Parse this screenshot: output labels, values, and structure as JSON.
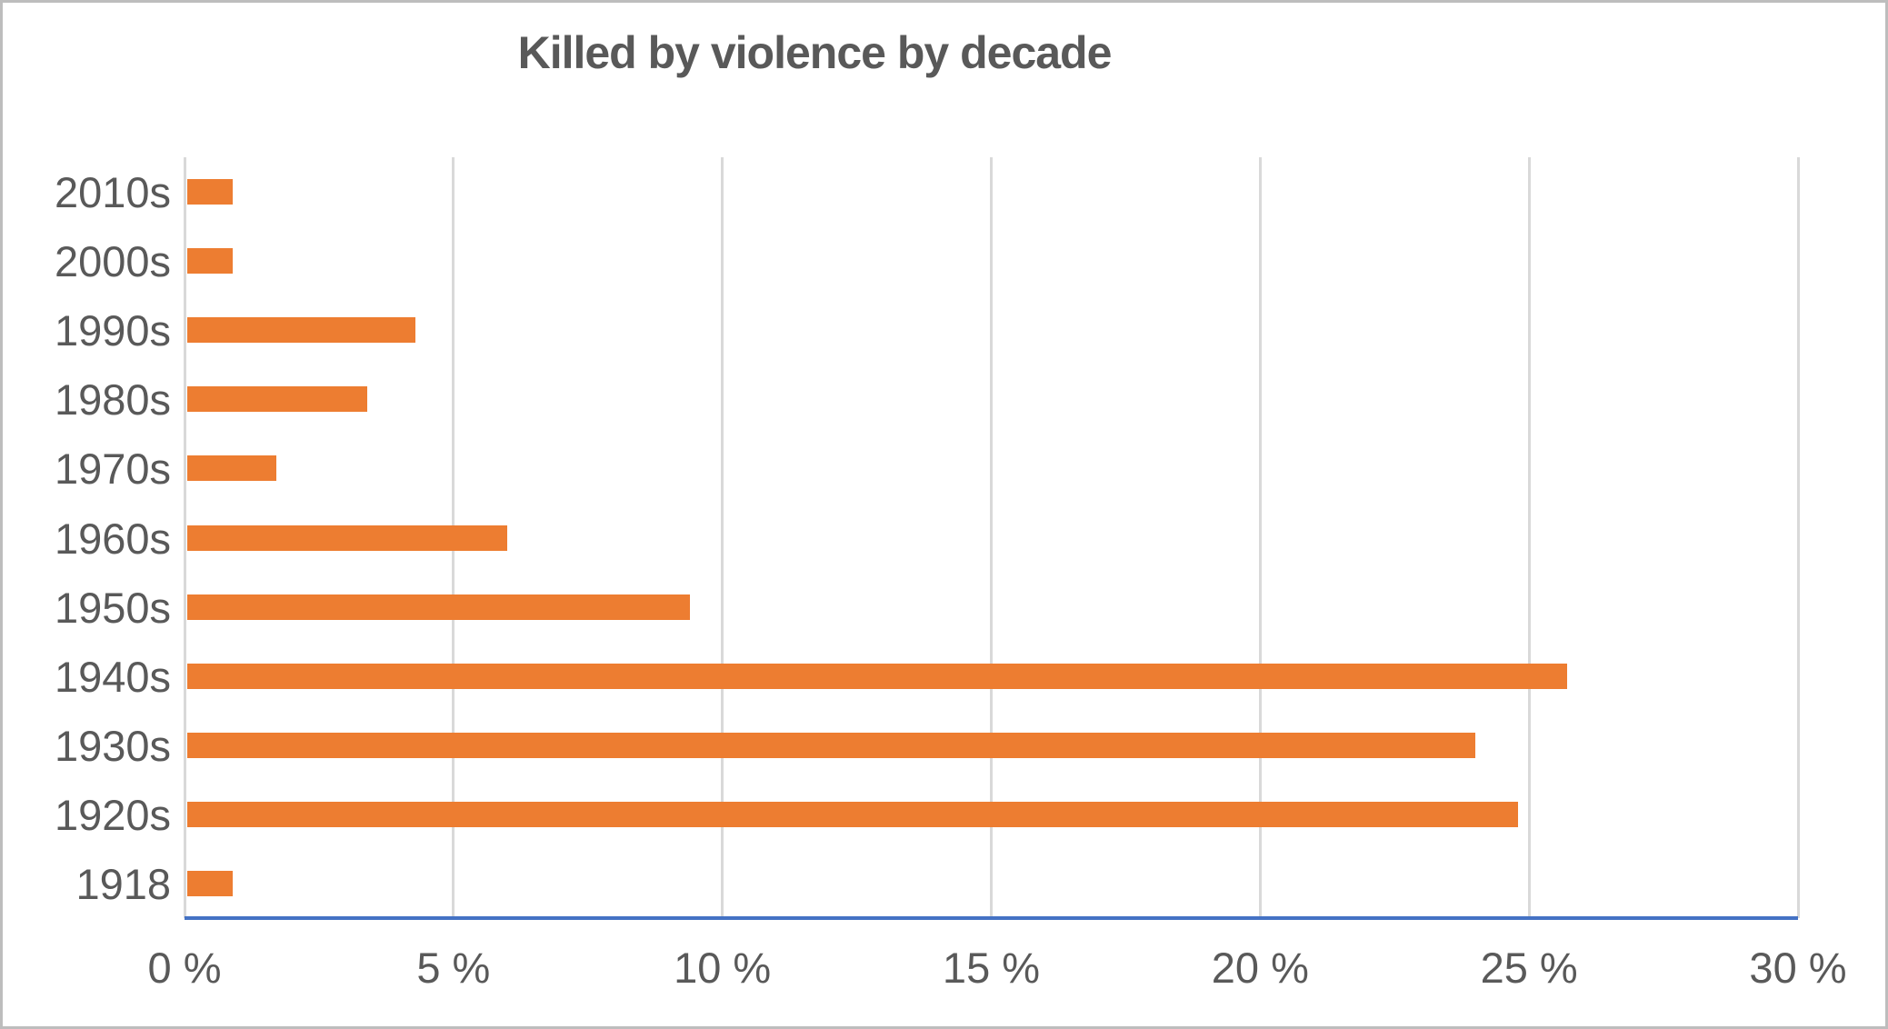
{
  "chart_data": {
    "type": "bar",
    "orientation": "horizontal",
    "title": "Killed by violence by decade",
    "categories": [
      "2010s",
      "2000s",
      "1990s",
      "1980s",
      "1970s",
      "1960s",
      "1950s",
      "1940s",
      "1930s",
      "1920s",
      "1918"
    ],
    "values": [
      0.9,
      0.9,
      4.3,
      3.4,
      1.7,
      6.0,
      9.4,
      25.7,
      24.0,
      24.8,
      0.9
    ],
    "unit": "%",
    "xlabel": "",
    "ylabel": "",
    "xlim": [
      0,
      30
    ],
    "x_ticks": [
      0,
      5,
      10,
      15,
      20,
      25,
      30
    ],
    "x_tick_labels": [
      "0 %",
      "5 %",
      "10 %",
      "15 %",
      "20 %",
      "25 %",
      "30 %"
    ],
    "grid": "vertical-only",
    "legend": "none",
    "colors": {
      "bar": "#ED7D31",
      "axis_line": "#4472C4",
      "gridline": "#D9D9D9",
      "text": "#595959",
      "border": "#BDBDBD",
      "background": "#FFFFFF"
    }
  }
}
